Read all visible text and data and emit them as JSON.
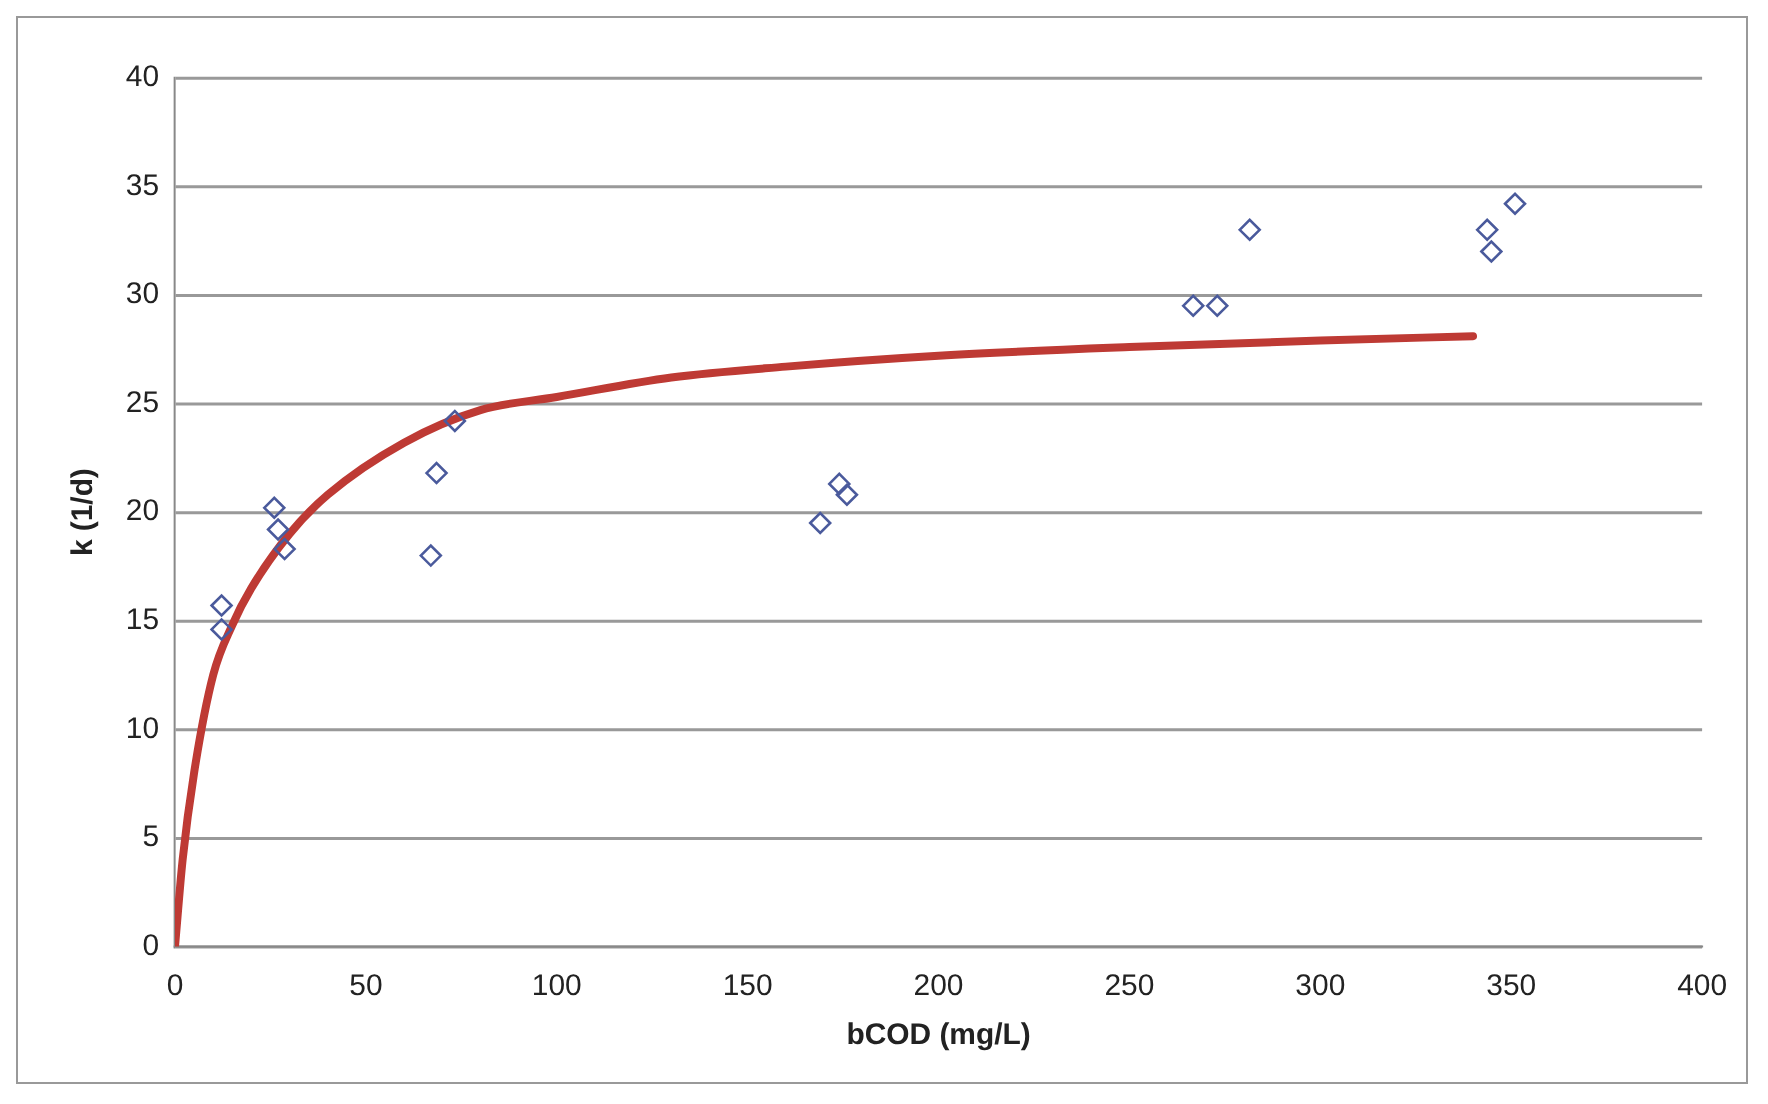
{
  "chart_data": {
    "type": "scatter",
    "xlabel": "bCOD (mg/L)",
    "ylabel": "k (1/d)",
    "xlim": [
      0,
      400
    ],
    "xticks": [
      0,
      50,
      100,
      150,
      200,
      250,
      300,
      350,
      400
    ],
    "ylim": [
      0,
      40
    ],
    "yticks": [
      0,
      5,
      10,
      15,
      20,
      25,
      30,
      35,
      40
    ],
    "grid": "y",
    "marker": "diamond",
    "series": [
      {
        "color": "#4a5a9c",
        "x": [
          12.2,
          12.2,
          26,
          27,
          28.7,
          67,
          68.5,
          73.3,
          169,
          174,
          176,
          266.7,
          273,
          281.5,
          343.7,
          344.8,
          351
        ],
        "values": [
          15.7,
          14.6,
          20.2,
          19.2,
          18.3,
          18.0,
          21.8,
          24.2,
          19.5,
          21.3,
          20.8,
          29.5,
          29.5,
          33.0,
          33.0,
          32.0,
          34.2
        ]
      },
      {
        "type": "line",
        "color": "#be3a34",
        "marker": "none",
        "x": [
          0,
          2,
          5,
          10,
          15,
          20,
          30,
          40,
          60,
          80,
          100,
          130,
          160,
          200,
          250,
          300,
          340
        ],
        "values": [
          0,
          4,
          8,
          12.5,
          14.8,
          16.5,
          19,
          20.8,
          23.2,
          24.7,
          25.3,
          26.2,
          26.7,
          27.2,
          27.6,
          27.9,
          28.1
        ]
      }
    ]
  }
}
